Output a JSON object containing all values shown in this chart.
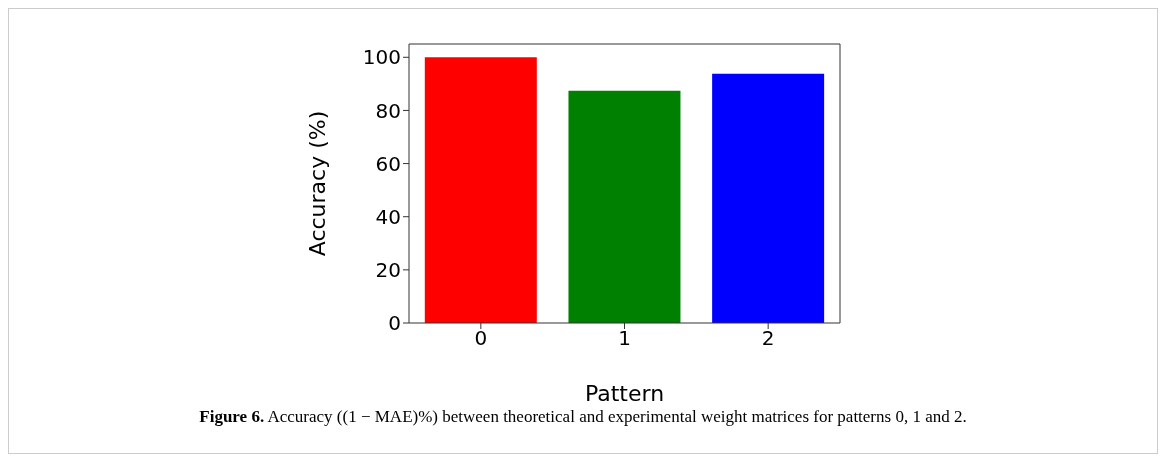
{
  "chart_data": {
    "type": "bar",
    "xlabel": "Pattern",
    "ylabel": "Accuracy (%)",
    "categories": [
      "0",
      "1",
      "2"
    ],
    "values": [
      100,
      87.4,
      93.8
    ],
    "colors": [
      "#ff0000",
      "#008000",
      "#0000ff"
    ],
    "ylim": [
      0,
      105
    ],
    "yticks": [
      0,
      20,
      40,
      60,
      80,
      100
    ],
    "grid": false,
    "legend": false,
    "annotations": [
      "Figure 6.",
      "Accuracy ((1 − MAE)%) between theoretical and experimental weight matrices for patterns 0, 1 and 2."
    ]
  }
}
